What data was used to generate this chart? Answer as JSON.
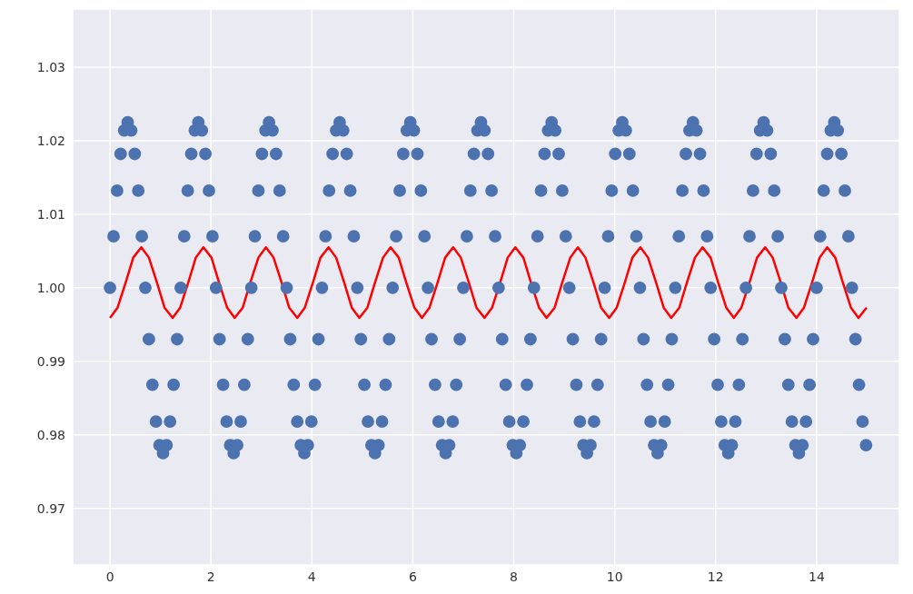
{
  "chart_data": {
    "type": "scatter",
    "xlim": [
      -0.74,
      15.64
    ],
    "ylim": [
      0.9623,
      1.0379
    ],
    "xticks": [
      0,
      2,
      4,
      6,
      8,
      10,
      12,
      14
    ],
    "yticks": [
      0.97,
      0.98,
      0.99,
      {
        "value": 1.0,
        "label": "1.00"
      },
      1.01,
      1.02,
      1.03
    ],
    "grid": true,
    "marker": "circle",
    "series": [
      {
        "type": "scatter",
        "color": "#4c72b0",
        "x": [
          0,
          0.07,
          0.14,
          0.21,
          0.28,
          0.35,
          0.42,
          0.49,
          0.56,
          0.63,
          0.7,
          0.77,
          0.84,
          0.91,
          0.98,
          1.05,
          1.12,
          1.19,
          1.26,
          1.33,
          1.4,
          1.47,
          1.54,
          1.61,
          1.68,
          1.75,
          1.82,
          1.89,
          1.96,
          2.03,
          2.1,
          2.17,
          2.24,
          2.31,
          2.38,
          2.45,
          2.52,
          2.59,
          2.66,
          2.73,
          2.8,
          2.87,
          2.94,
          3.01,
          3.08,
          3.15,
          3.22,
          3.29,
          3.36,
          3.43,
          3.5,
          3.57,
          3.64,
          3.71,
          3.78,
          3.85,
          3.92,
          3.99,
          4.06,
          4.13,
          4.2,
          4.27,
          4.34,
          4.41,
          4.48,
          4.55,
          4.62,
          4.69,
          4.76,
          4.83,
          4.9,
          4.97,
          5.04,
          5.11,
          5.18,
          5.25,
          5.32,
          5.39,
          5.46,
          5.53,
          5.6,
          5.67,
          5.74,
          5.81,
          5.88,
          5.95,
          6.02,
          6.09,
          6.16,
          6.23,
          6.3,
          6.37,
          6.44,
          6.51,
          6.58,
          6.65,
          6.72,
          6.79,
          6.86,
          6.93,
          7.0,
          7.07,
          7.14,
          7.21,
          7.28,
          7.35,
          7.42,
          7.49,
          7.56,
          7.63,
          7.7,
          7.77,
          7.84,
          7.91,
          7.98,
          8.05,
          8.12,
          8.19,
          8.26,
          8.33,
          8.4,
          8.47,
          8.54,
          8.61,
          8.68,
          8.75,
          8.82,
          8.89,
          8.96,
          9.03,
          9.1,
          9.17,
          9.24,
          9.31,
          9.38,
          9.45,
          9.52,
          9.59,
          9.66,
          9.73,
          9.8,
          9.87,
          9.94,
          10.01,
          10.08,
          10.15,
          10.22,
          10.29,
          10.36,
          10.43,
          10.5,
          10.57,
          10.64,
          10.71,
          10.78,
          10.85,
          10.92,
          10.99,
          11.06,
          11.13,
          11.2,
          11.27,
          11.34,
          11.41,
          11.48,
          11.55,
          11.62,
          11.69,
          11.76,
          11.83,
          11.9,
          11.97,
          12.04,
          12.11,
          12.18,
          12.25,
          12.32,
          12.39,
          12.46,
          12.53,
          12.6,
          12.67,
          12.74,
          12.81,
          12.88,
          12.95,
          13.02,
          13.09,
          13.16,
          13.23,
          13.3,
          13.37,
          13.44,
          13.51,
          13.58,
          13.65,
          13.72,
          13.79,
          13.86,
          13.93,
          14.0,
          14.07,
          14.14,
          14.21,
          14.28,
          14.35,
          14.42,
          14.49,
          14.56,
          14.63,
          14.7,
          14.77,
          14.84,
          14.91,
          14.98
        ],
        "values": [
          1.0,
          1.007,
          1.0132,
          1.0182,
          1.0214,
          1.0225,
          1.0214,
          1.0182,
          1.0132,
          1.007,
          1.0,
          0.993,
          0.9868,
          0.9818,
          0.9786,
          0.9775,
          0.9786,
          0.9818,
          0.9868,
          0.993,
          1.0,
          1.007,
          1.0132,
          1.0182,
          1.0214,
          1.0225,
          1.0214,
          1.0182,
          1.0132,
          1.007,
          1.0,
          0.993,
          0.9868,
          0.9818,
          0.9786,
          0.9775,
          0.9786,
          0.9818,
          0.9868,
          0.993,
          1.0,
          1.007,
          1.0132,
          1.0182,
          1.0214,
          1.0225,
          1.0214,
          1.0182,
          1.0132,
          1.007,
          1.0,
          0.993,
          0.9868,
          0.9818,
          0.9786,
          0.9775,
          0.9786,
          0.9818,
          0.9868,
          0.993,
          1.0,
          1.007,
          1.0132,
          1.0182,
          1.0214,
          1.0225,
          1.0214,
          1.0182,
          1.0132,
          1.007,
          1.0,
          0.993,
          0.9868,
          0.9818,
          0.9786,
          0.9775,
          0.9786,
          0.9818,
          0.9868,
          0.993,
          1.0,
          1.007,
          1.0132,
          1.0182,
          1.0214,
          1.0225,
          1.0214,
          1.0182,
          1.0132,
          1.007,
          1.0,
          0.993,
          0.9868,
          0.9818,
          0.9786,
          0.9775,
          0.9786,
          0.9818,
          0.9868,
          0.993,
          1.0,
          1.007,
          1.0132,
          1.0182,
          1.0214,
          1.0225,
          1.0214,
          1.0182,
          1.0132,
          1.007,
          1.0,
          0.993,
          0.9868,
          0.9818,
          0.9786,
          0.9775,
          0.9786,
          0.9818,
          0.9868,
          0.993,
          1.0,
          1.007,
          1.0132,
          1.0182,
          1.0214,
          1.0225,
          1.0214,
          1.0182,
          1.0132,
          1.007,
          1.0,
          0.993,
          0.9868,
          0.9818,
          0.9786,
          0.9775,
          0.9786,
          0.9818,
          0.9868,
          0.993,
          1.0,
          1.007,
          1.0132,
          1.0182,
          1.0214,
          1.0225,
          1.0214,
          1.0182,
          1.0132,
          1.007,
          1.0,
          0.993,
          0.9868,
          0.9818,
          0.9786,
          0.9775,
          0.9786,
          0.9818,
          0.9868,
          0.993,
          1.0,
          1.007,
          1.0132,
          1.0182,
          1.0214,
          1.0225,
          1.0214,
          1.0182,
          1.0132,
          1.007,
          1.0,
          0.993,
          0.9868,
          0.9818,
          0.9786,
          0.9775,
          0.9786,
          0.9818,
          0.9868,
          0.993,
          1.0,
          1.007,
          1.0132,
          1.0182,
          1.0214,
          1.0225,
          1.0214,
          1.0182,
          1.0132,
          1.007,
          1.0,
          0.993,
          0.9868,
          0.9818,
          0.9786,
          0.9775,
          0.9786,
          0.9818,
          0.9868,
          0.993,
          1.0,
          1.007,
          1.0132,
          1.0182,
          1.0214,
          1.0225,
          1.0214,
          1.0182,
          1.0132,
          1.007,
          1.0,
          0.993,
          0.9868,
          0.9818,
          0.9786
        ]
      },
      {
        "type": "line",
        "color": "#ff0000",
        "marker": "none",
        "line_style": "solid",
        "x": [
          0,
          0.15,
          0.31,
          0.46,
          0.62,
          0.77,
          0.93,
          1.08,
          1.24,
          1.39,
          1.55,
          1.7,
          1.85,
          2.01,
          2.16,
          2.32,
          2.47,
          2.63,
          2.78,
          2.94,
          3.09,
          3.24,
          3.4,
          3.55,
          3.71,
          3.86,
          4.02,
          4.17,
          4.33,
          4.48,
          4.64,
          4.79,
          4.94,
          5.1,
          5.25,
          5.41,
          5.56,
          5.72,
          5.87,
          6.03,
          6.18,
          6.33,
          6.49,
          6.64,
          6.8,
          6.95,
          7.11,
          7.26,
          7.42,
          7.57,
          7.73,
          7.88,
          8.03,
          8.19,
          8.34,
          8.5,
          8.65,
          8.81,
          8.96,
          9.12,
          9.27,
          9.42,
          9.58,
          9.73,
          9.89,
          10.04,
          10.2,
          10.35,
          10.51,
          10.66,
          10.82,
          10.97,
          11.12,
          11.28,
          11.43,
          11.59,
          11.74,
          11.9,
          12.05,
          12.21,
          12.36,
          12.51,
          12.67,
          12.82,
          12.98,
          13.13,
          13.29,
          13.44,
          13.6,
          13.75,
          13.91,
          14.06,
          14.21,
          14.37,
          14.52,
          14.68,
          14.83,
          14.99
        ],
        "values": [
          0.9959,
          0.9973,
          1.0007,
          1.0041,
          1.0055,
          1.0041,
          1.0007,
          0.9973,
          0.9959,
          0.9973,
          1.0007,
          1.0041,
          1.0055,
          1.0041,
          1.0007,
          0.9973,
          0.9959,
          0.9973,
          1.0007,
          1.0041,
          1.0055,
          1.0041,
          1.0007,
          0.9973,
          0.9959,
          0.9973,
          1.0007,
          1.0041,
          1.0055,
          1.0041,
          1.0007,
          0.9973,
          0.9959,
          0.9973,
          1.0007,
          1.0041,
          1.0055,
          1.0041,
          1.0007,
          0.9973,
          0.9959,
          0.9973,
          1.0007,
          1.0041,
          1.0055,
          1.0041,
          1.0007,
          0.9973,
          0.9959,
          0.9973,
          1.0007,
          1.0041,
          1.0055,
          1.0041,
          1.0007,
          0.9973,
          0.9959,
          0.9973,
          1.0007,
          1.0041,
          1.0055,
          1.0041,
          1.0007,
          0.9973,
          0.9959,
          0.9973,
          1.0007,
          1.0041,
          1.0055,
          1.0041,
          1.0007,
          0.9973,
          0.9959,
          0.9973,
          1.0007,
          1.0041,
          1.0055,
          1.0041,
          1.0007,
          0.9973,
          0.9959,
          0.9973,
          1.0007,
          1.0041,
          1.0055,
          1.0041,
          1.0007,
          0.9973,
          0.9959,
          0.9973,
          1.0007,
          1.0041,
          1.0055,
          1.0041,
          1.0007,
          0.9973,
          0.9959,
          0.9973
        ]
      }
    ]
  }
}
